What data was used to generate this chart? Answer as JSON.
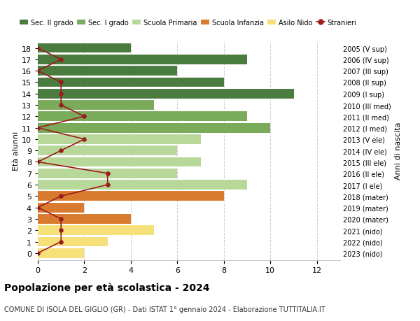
{
  "ages": [
    0,
    1,
    2,
    3,
    4,
    5,
    6,
    7,
    8,
    9,
    10,
    11,
    12,
    13,
    14,
    15,
    16,
    17,
    18
  ],
  "bar_values": [
    2,
    3,
    5,
    4,
    2,
    8,
    9,
    6,
    7,
    6,
    7,
    10,
    9,
    5,
    11,
    8,
    6,
    9,
    4
  ],
  "bar_colors": [
    "#f5e07a",
    "#f5e07a",
    "#f5e07a",
    "#d97b2e",
    "#d97b2e",
    "#d97b2e",
    "#b8d89a",
    "#b8d89a",
    "#b8d89a",
    "#b8d89a",
    "#b8d89a",
    "#7aab5a",
    "#7aab5a",
    "#7aab5a",
    "#4a7c3f",
    "#4a7c3f",
    "#4a7c3f",
    "#4a7c3f",
    "#4a7c3f"
  ],
  "stranieri_values": [
    0,
    1,
    1,
    1,
    0,
    1,
    3,
    3,
    0,
    1,
    2,
    0,
    2,
    1,
    1,
    1,
    0,
    1,
    0
  ],
  "right_labels": [
    "2023 (nido)",
    "2022 (nido)",
    "2021 (nido)",
    "2020 (mater)",
    "2019 (mater)",
    "2018 (mater)",
    "2017 (I ele)",
    "2016 (II ele)",
    "2015 (III ele)",
    "2014 (IV ele)",
    "2013 (V ele)",
    "2012 (I med)",
    "2011 (II med)",
    "2010 (III med)",
    "2009 (I sup)",
    "2008 (II sup)",
    "2007 (III sup)",
    "2006 (IV sup)",
    "2005 (V sup)"
  ],
  "xlim": [
    0,
    13
  ],
  "ylabel_left": "Età alunni",
  "ylabel_right": "Anni di nascita",
  "title": "Popolazione per età scolastica - 2024",
  "subtitle": "COMUNE DI ISOLA DEL GIGLIO (GR) - Dati ISTAT 1° gennaio 2024 - Elaborazione TUTTITALIA.IT",
  "legend_labels": [
    "Sec. II grado",
    "Sec. I grado",
    "Scuola Primaria",
    "Scuola Infanzia",
    "Asilo Nido",
    "Stranieri"
  ],
  "legend_colors": [
    "#4a7c3f",
    "#7aab5a",
    "#b8d89a",
    "#d97b2e",
    "#f5e07a",
    "#9b1c1c"
  ],
  "stranieri_color": "#9b1c1c",
  "grid_color": "#cccccc",
  "bg_color": "#ffffff"
}
